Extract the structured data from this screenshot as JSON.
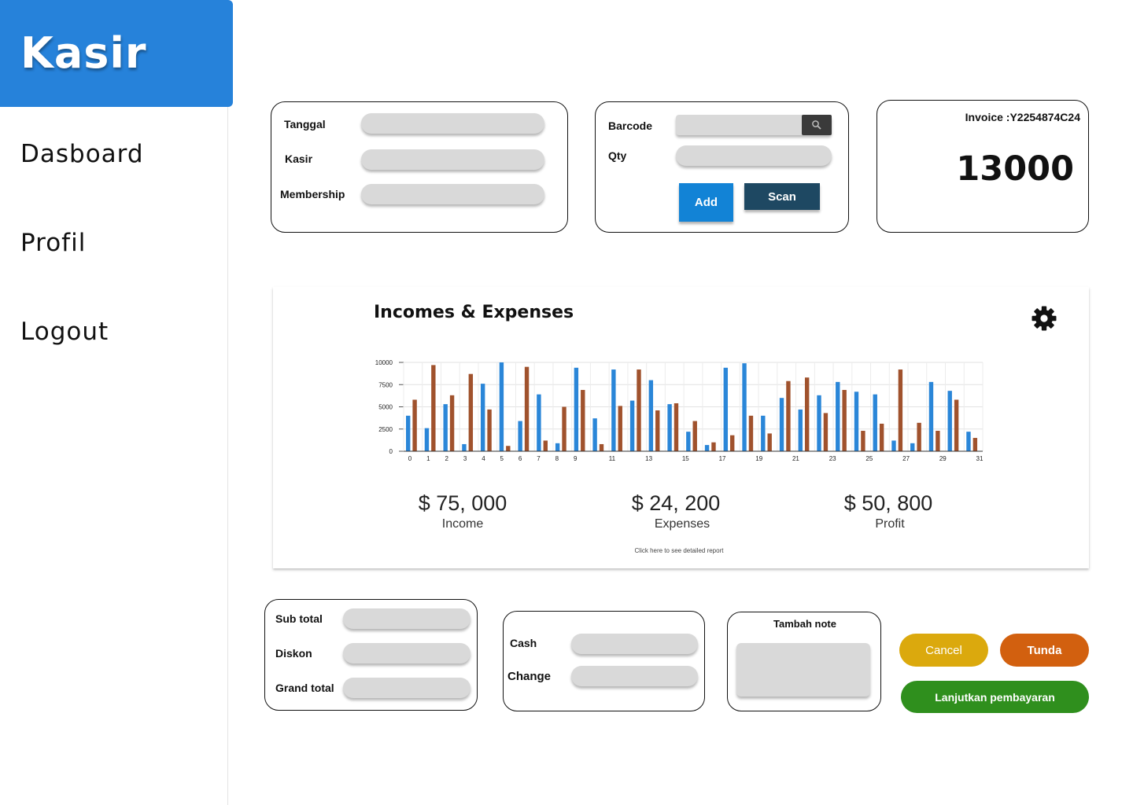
{
  "app": {
    "brand": "Kasir"
  },
  "sidebar": {
    "items": [
      {
        "label": "Dasboard"
      },
      {
        "label": "Profil"
      },
      {
        "label": "Logout"
      }
    ]
  },
  "transaction": {
    "tanggal_label": "Tanggal",
    "kasir_label": "Kasir",
    "membership_label": "Membership"
  },
  "scanner": {
    "barcode_label": "Barcode",
    "qty_label": "Qty",
    "add_label": "Add",
    "scan_label": "Scan",
    "search_icon": "search-icon"
  },
  "invoice": {
    "label": "Invoice :Y2254874C24",
    "total": "13000"
  },
  "report": {
    "title": "Incomes & Expenses",
    "settings_icon": "gear-icon",
    "income_value": "$ 75, 000",
    "income_label": "Income",
    "expenses_value": "$ 24, 200",
    "expenses_label": "Expenses",
    "profit_value": "$ 50, 800",
    "profit_label": "Profit",
    "link": "Click here to see detailed report"
  },
  "chart_data": {
    "type": "bar",
    "ylim": [
      0,
      10000
    ],
    "yticks": [
      0,
      2500,
      5000,
      7500,
      10000
    ],
    "xtick_labels": [
      "0",
      "1",
      "2",
      "3",
      "4",
      "5",
      "6",
      "7",
      "8",
      "9",
      "11",
      "13",
      "15",
      "17",
      "19",
      "21",
      "23",
      "25",
      "27",
      "29",
      "31"
    ],
    "colors": {
      "income": "#2a86d8",
      "expense": "#a0522d"
    },
    "grid": true,
    "series": [
      {
        "color": "#2a86d8",
        "values": [
          4000,
          2600,
          5300,
          800,
          7600,
          10000,
          3400,
          6400,
          900,
          9400,
          3700,
          9200,
          5700,
          8000,
          5300,
          2200,
          700,
          9400,
          9900,
          4000,
          6000,
          4700,
          6300,
          7800,
          6700,
          6400,
          1200,
          900,
          7800,
          6800,
          2200
        ]
      },
      {
        "color": "#a0522d",
        "values": [
          5800,
          9700,
          6300,
          8700,
          4700,
          600,
          9500,
          1200,
          5000,
          6900,
          800,
          5100,
          9200,
          4600,
          5400,
          3400,
          1000,
          1800,
          4000,
          2000,
          7900,
          8300,
          4300,
          6900,
          2300,
          3100,
          9200,
          3200,
          2300,
          5800,
          1500
        ]
      }
    ]
  },
  "summary": {
    "subtotal_label": "Sub total",
    "diskon_label": "Diskon",
    "grandtotal_label": "Grand total"
  },
  "payment": {
    "cash_label": "Cash",
    "change_label": "Change"
  },
  "note": {
    "label": "Tambah note"
  },
  "actions": {
    "cancel_label": "Cancel",
    "tunda_label": "Tunda",
    "continue_label": "Lanjutkan pembayaran",
    "colors": {
      "cancel": "#dba90d",
      "tunda": "#d2600f",
      "continue": "#2f8f1d",
      "add": "#1283d6",
      "scan": "#1e4862"
    }
  }
}
